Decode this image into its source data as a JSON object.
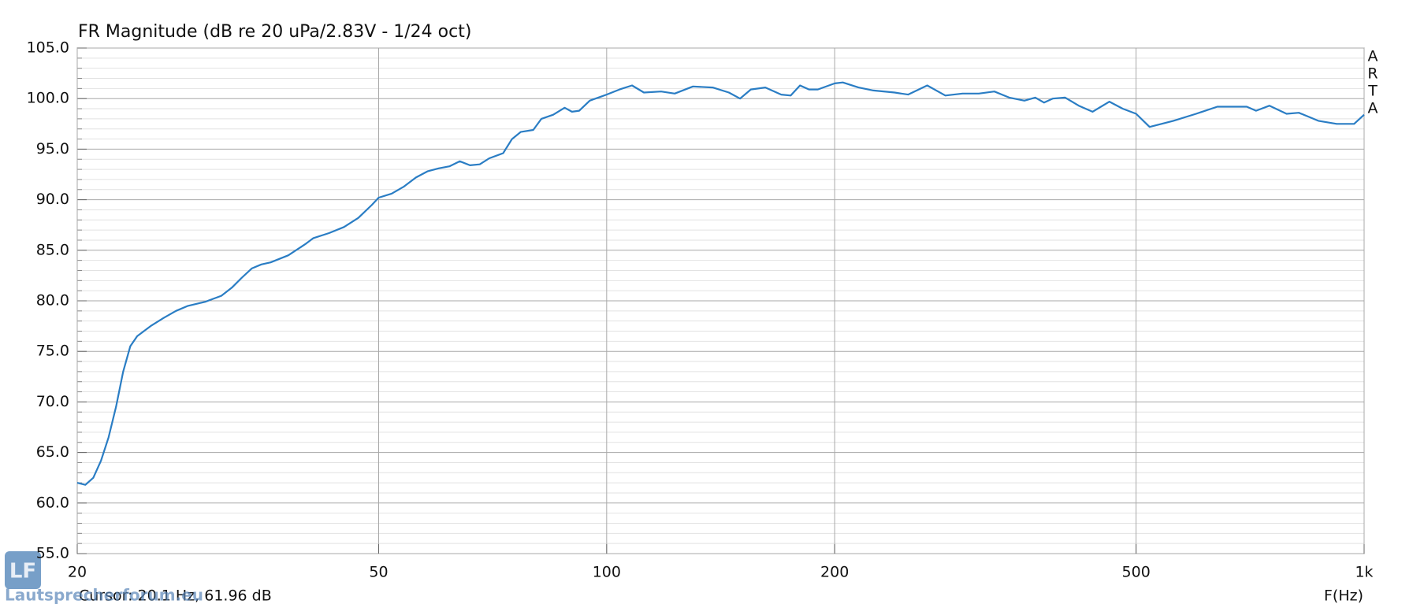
{
  "chart_data": {
    "type": "line",
    "title": "FR Magnitude (dB re 20 uPa/2.83V - 1/24 oct)",
    "xlabel": "F(Hz)",
    "cursor": "Cursor: 20.1 Hz, 61.96 dB",
    "side_label": [
      "A",
      "R",
      "T",
      "A"
    ],
    "watermark": "Lautsprecherforum.eu",
    "logo": "LF",
    "xscale": "log",
    "grid": true,
    "xlim": [
      20,
      1000
    ],
    "xticks": [
      20,
      50,
      100,
      200,
      500,
      {
        "value": 1000,
        "label": "1k"
      }
    ],
    "ylim": [
      55,
      105
    ],
    "yticks": [
      {
        "value": 55,
        "label": "55.0"
      },
      {
        "value": 60,
        "label": "60.0"
      },
      {
        "value": 65,
        "label": "65.0"
      },
      {
        "value": 70,
        "label": "70.0"
      },
      {
        "value": 75,
        "label": "75.0"
      },
      {
        "value": 80,
        "label": "80.0"
      },
      {
        "value": 85,
        "label": "85.0"
      },
      {
        "value": 90,
        "label": "90.0"
      },
      {
        "value": 95,
        "label": "95.0"
      },
      {
        "value": 100,
        "label": "100.0"
      },
      {
        "value": 105,
        "label": "105.0"
      }
    ],
    "x": [
      20,
      20.5,
      21,
      21.5,
      22,
      22.5,
      23,
      23.5,
      24,
      25,
      26,
      27,
      28,
      29.5,
      31,
      32,
      33,
      34,
      35,
      36,
      38,
      40,
      41,
      43,
      45,
      47,
      49,
      50,
      52,
      54,
      56,
      58,
      60,
      62,
      64,
      66,
      68,
      70,
      73,
      75,
      77,
      80,
      82,
      85,
      88,
      90,
      92,
      95,
      100,
      104,
      108,
      112,
      118,
      123,
      130,
      138,
      145,
      150,
      155,
      162,
      170,
      175,
      180,
      185,
      190,
      200,
      205,
      215,
      225,
      240,
      250,
      265,
      280,
      295,
      310,
      325,
      340,
      356,
      368,
      378,
      388,
      403,
      420,
      438,
      461,
      480,
      500,
      521,
      560,
      600,
      640,
      700,
      720,
      750,
      790,
      820,
      870,
      920,
      970,
      1000
    ],
    "series": [
      {
        "name": "FR Magnitude",
        "color": "#2a7dc4",
        "values": [
          62.0,
          61.8,
          62.5,
          64.2,
          66.5,
          69.5,
          73.0,
          75.5,
          76.5,
          77.5,
          78.3,
          79.0,
          79.5,
          79.9,
          80.5,
          81.3,
          82.3,
          83.2,
          83.6,
          83.8,
          84.5,
          85.6,
          86.2,
          86.7,
          87.3,
          88.2,
          89.5,
          90.2,
          90.6,
          91.3,
          92.2,
          92.8,
          93.1,
          93.3,
          93.8,
          93.4,
          93.5,
          94.1,
          94.6,
          96.0,
          96.7,
          96.9,
          98.0,
          98.4,
          99.1,
          98.7,
          98.8,
          99.8,
          100.4,
          100.9,
          101.3,
          100.6,
          100.7,
          100.5,
          101.2,
          101.1,
          100.6,
          100.0,
          100.9,
          101.1,
          100.4,
          100.3,
          101.3,
          100.9,
          100.9,
          101.5,
          101.6,
          101.1,
          100.8,
          100.6,
          100.4,
          101.3,
          100.3,
          100.5,
          100.5,
          100.7,
          100.1,
          99.8,
          100.1,
          99.6,
          100.0,
          100.1,
          99.3,
          98.7,
          99.7,
          99.0,
          98.5,
          97.2,
          97.8,
          98.5,
          99.2,
          99.2,
          98.8,
          99.3,
          98.5,
          98.6,
          97.8,
          97.5,
          97.5,
          98.4
        ]
      }
    ]
  }
}
